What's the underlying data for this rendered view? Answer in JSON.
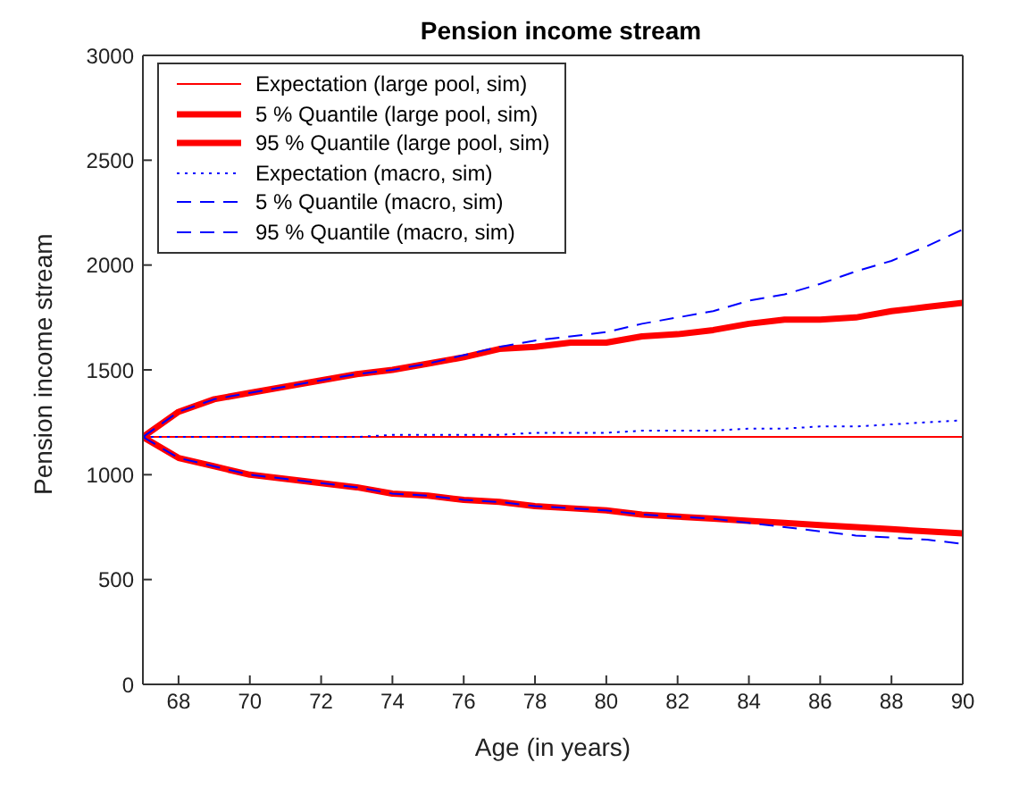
{
  "chart_data": {
    "type": "line",
    "title": "Pension income stream",
    "xlabel": "Age (in years)",
    "ylabel": "Pension income stream",
    "x": [
      67,
      68,
      69,
      70,
      71,
      72,
      73,
      74,
      75,
      76,
      77,
      78,
      79,
      80,
      81,
      82,
      83,
      84,
      85,
      86,
      87,
      88,
      89,
      90
    ],
    "series": [
      {
        "name": "Expectation (large pool, sim)",
        "color": "#ff0000",
        "line_style": "solid",
        "values": [
          1180,
          1180,
          1180,
          1180,
          1180,
          1180,
          1180,
          1180,
          1180,
          1180,
          1180,
          1180,
          1180,
          1180,
          1180,
          1180,
          1180,
          1180,
          1180,
          1180,
          1180,
          1180,
          1180,
          1180
        ]
      },
      {
        "name": "5 % Quantile (large pool, sim)",
        "color": "#ff0000",
        "line_style": "solid",
        "values": [
          1180,
          1080,
          1040,
          1000,
          980,
          960,
          940,
          910,
          900,
          880,
          870,
          850,
          840,
          830,
          810,
          800,
          790,
          780,
          770,
          760,
          750,
          740,
          730,
          720
        ]
      },
      {
        "name": "95 % Quantile (large pool, sim)",
        "color": "#ff0000",
        "line_style": "solid",
        "values": [
          1180,
          1300,
          1360,
          1390,
          1420,
          1450,
          1480,
          1500,
          1530,
          1560,
          1600,
          1610,
          1630,
          1630,
          1660,
          1670,
          1690,
          1720,
          1740,
          1740,
          1750,
          1780,
          1800,
          1820
        ]
      },
      {
        "name": "Expectation (macro, sim)",
        "color": "#0000ff",
        "line_style": "dotted",
        "values": [
          1180,
          1180,
          1180,
          1180,
          1180,
          1180,
          1180,
          1190,
          1190,
          1190,
          1190,
          1200,
          1200,
          1200,
          1210,
          1210,
          1210,
          1220,
          1220,
          1230,
          1230,
          1240,
          1250,
          1260
        ]
      },
      {
        "name": "5 % Quantile (macro, sim)",
        "color": "#0000ff",
        "line_style": "dashed",
        "values": [
          1180,
          1080,
          1040,
          1000,
          980,
          960,
          940,
          910,
          900,
          880,
          870,
          850,
          840,
          830,
          810,
          800,
          790,
          770,
          750,
          730,
          710,
          700,
          690,
          670
        ]
      },
      {
        "name": "95 % Quantile (macro, sim)",
        "color": "#0000ff",
        "line_style": "dashed",
        "values": [
          1180,
          1300,
          1360,
          1390,
          1420,
          1450,
          1480,
          1500,
          1530,
          1570,
          1610,
          1640,
          1660,
          1680,
          1720,
          1750,
          1780,
          1830,
          1860,
          1910,
          1970,
          2020,
          2090,
          2170
        ]
      }
    ],
    "xlim": [
      67,
      90
    ],
    "xticks": [
      68,
      70,
      72,
      74,
      76,
      78,
      80,
      82,
      84,
      86,
      88,
      90
    ],
    "ylim": [
      0,
      3000
    ],
    "yticks": [
      0,
      500,
      1000,
      1500,
      2000,
      2500,
      3000
    ],
    "grid": false,
    "legend": "top left",
    "marker": "none"
  }
}
